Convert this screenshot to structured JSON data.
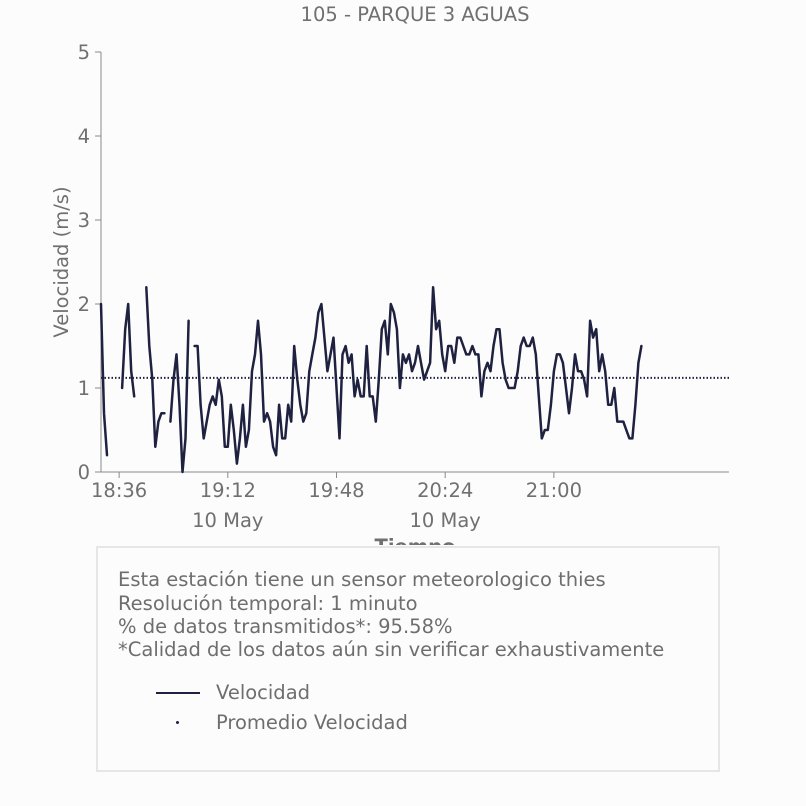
{
  "chart_data": {
    "type": "line",
    "title": "105 - PARQUE 3 AGUAS",
    "xlabel": "Tiempo",
    "ylabel": "Velocidad (m/s)",
    "ylim": [
      0,
      5
    ],
    "yticks": [
      "0",
      "1",
      "2",
      "3",
      "4",
      "5"
    ],
    "xlim": [
      "18:30",
      "21:58"
    ],
    "xticks": [
      {
        "t": "18:36",
        "label": "18:36",
        "sub": ""
      },
      {
        "t": "19:12",
        "label": "19:12",
        "sub": "10 May"
      },
      {
        "t": "19:48",
        "label": "19:48",
        "sub": ""
      },
      {
        "t": "20:24",
        "label": "20:24",
        "sub": "10 May"
      },
      {
        "t": "21:00",
        "label": "21:00",
        "sub": ""
      }
    ],
    "grid": false,
    "series": [
      {
        "name": "Velocidad",
        "color": "#1f2140",
        "segments": [
          [
            [
              "18:30",
              2.0
            ],
            [
              "18:31",
              0.7
            ],
            [
              "18:32",
              0.2
            ]
          ],
          [
            [
              "18:37",
              1.0
            ],
            [
              "18:38",
              1.7
            ],
            [
              "18:39",
              2.0
            ],
            [
              "18:40",
              1.2
            ],
            [
              "18:41",
              0.9
            ]
          ],
          [
            [
              "18:45",
              2.2
            ],
            [
              "18:46",
              1.5
            ],
            [
              "18:47",
              1.1
            ],
            [
              "18:48",
              0.3
            ],
            [
              "18:49",
              0.6
            ],
            [
              "18:50",
              0.7
            ],
            [
              "18:51",
              0.7
            ]
          ],
          [
            [
              "18:53",
              0.6
            ],
            [
              "18:54",
              1.1
            ],
            [
              "18:55",
              1.4
            ],
            [
              "18:56",
              0.8
            ],
            [
              "18:57",
              0.0
            ],
            [
              "18:58",
              0.4
            ],
            [
              "18:59",
              1.8
            ]
          ],
          [
            [
              "19:01",
              1.5
            ],
            [
              "19:02",
              1.5
            ],
            [
              "19:03",
              0.8
            ],
            [
              "19:04",
              0.4
            ],
            [
              "19:05",
              0.6
            ],
            [
              "19:06",
              0.8
            ],
            [
              "19:07",
              0.9
            ],
            [
              "19:08",
              0.8
            ],
            [
              "19:09",
              1.1
            ],
            [
              "19:10",
              0.9
            ],
            [
              "19:11",
              0.3
            ],
            [
              "19:12",
              0.3
            ],
            [
              "19:13",
              0.8
            ],
            [
              "19:14",
              0.5
            ],
            [
              "19:15",
              0.1
            ],
            [
              "19:16",
              0.4
            ],
            [
              "19:17",
              0.8
            ],
            [
              "19:18",
              0.3
            ],
            [
              "19:19",
              0.5
            ],
            [
              "19:20",
              1.2
            ],
            [
              "19:21",
              1.4
            ],
            [
              "19:22",
              1.8
            ],
            [
              "19:23",
              1.4
            ],
            [
              "19:24",
              0.6
            ],
            [
              "19:25",
              0.7
            ],
            [
              "19:26",
              0.6
            ],
            [
              "19:27",
              0.3
            ],
            [
              "19:28",
              0.2
            ],
            [
              "19:29",
              0.8
            ],
            [
              "19:30",
              0.4
            ],
            [
              "19:31",
              0.4
            ],
            [
              "19:32",
              0.8
            ],
            [
              "19:33",
              0.6
            ],
            [
              "19:34",
              1.5
            ],
            [
              "19:35",
              1.1
            ],
            [
              "19:36",
              0.8
            ],
            [
              "19:37",
              0.6
            ],
            [
              "19:38",
              0.7
            ],
            [
              "19:39",
              1.2
            ],
            [
              "19:40",
              1.4
            ],
            [
              "19:41",
              1.6
            ],
            [
              "19:42",
              1.9
            ],
            [
              "19:43",
              2.0
            ],
            [
              "19:44",
              1.6
            ],
            [
              "19:45",
              1.2
            ],
            [
              "19:46",
              1.4
            ],
            [
              "19:47",
              1.6
            ],
            [
              "19:48",
              1.0
            ],
            [
              "19:49",
              0.4
            ],
            [
              "19:50",
              1.4
            ],
            [
              "19:51",
              1.5
            ],
            [
              "19:52",
              1.3
            ],
            [
              "19:53",
              1.4
            ],
            [
              "19:54",
              0.9
            ],
            [
              "19:55",
              1.1
            ],
            [
              "19:56",
              0.9
            ],
            [
              "19:57",
              0.9
            ],
            [
              "19:58",
              1.5
            ],
            [
              "19:59",
              0.9
            ],
            [
              "20:00",
              0.9
            ],
            [
              "20:01",
              0.6
            ],
            [
              "20:02",
              1.1
            ],
            [
              "20:03",
              1.7
            ],
            [
              "20:04",
              1.8
            ],
            [
              "20:05",
              1.4
            ],
            [
              "20:06",
              2.0
            ],
            [
              "20:07",
              1.9
            ],
            [
              "20:08",
              1.7
            ],
            [
              "20:09",
              1.0
            ],
            [
              "20:10",
              1.4
            ],
            [
              "20:11",
              1.3
            ],
            [
              "20:12",
              1.4
            ],
            [
              "20:13",
              1.2
            ],
            [
              "20:14",
              1.3
            ],
            [
              "20:15",
              1.5
            ],
            [
              "20:16",
              1.3
            ],
            [
              "20:17",
              1.1
            ],
            [
              "20:18",
              1.2
            ],
            [
              "20:19",
              1.3
            ],
            [
              "20:20",
              2.2
            ],
            [
              "20:21",
              1.7
            ],
            [
              "20:22",
              1.8
            ],
            [
              "20:23",
              1.4
            ],
            [
              "20:24",
              1.2
            ],
            [
              "20:25",
              1.5
            ],
            [
              "20:26",
              1.5
            ],
            [
              "20:27",
              1.3
            ],
            [
              "20:28",
              1.6
            ],
            [
              "20:29",
              1.6
            ],
            [
              "20:30",
              1.5
            ],
            [
              "20:31",
              1.4
            ],
            [
              "20:32",
              1.4
            ],
            [
              "20:33",
              1.5
            ],
            [
              "20:34",
              1.4
            ],
            [
              "20:35",
              1.4
            ],
            [
              "20:36",
              0.9
            ],
            [
              "20:37",
              1.2
            ],
            [
              "20:38",
              1.3
            ],
            [
              "20:39",
              1.2
            ],
            [
              "20:40",
              1.5
            ],
            [
              "20:41",
              1.7
            ],
            [
              "20:42",
              1.7
            ],
            [
              "20:43",
              1.3
            ],
            [
              "20:44",
              1.1
            ],
            [
              "20:45",
              1.0
            ],
            [
              "20:46",
              1.0
            ],
            [
              "20:47",
              1.0
            ],
            [
              "20:48",
              1.2
            ],
            [
              "20:49",
              1.5
            ],
            [
              "20:50",
              1.6
            ],
            [
              "20:51",
              1.5
            ],
            [
              "20:52",
              1.5
            ],
            [
              "20:53",
              1.6
            ],
            [
              "20:54",
              1.4
            ],
            [
              "20:55",
              0.9
            ],
            [
              "20:56",
              0.4
            ],
            [
              "20:57",
              0.5
            ],
            [
              "20:58",
              0.5
            ],
            [
              "20:59",
              0.8
            ],
            [
              "21:00",
              1.2
            ],
            [
              "21:01",
              1.4
            ],
            [
              "21:02",
              1.4
            ],
            [
              "21:03",
              1.3
            ],
            [
              "21:04",
              1.0
            ],
            [
              "21:05",
              0.7
            ],
            [
              "21:06",
              1.0
            ],
            [
              "21:07",
              1.4
            ],
            [
              "21:08",
              1.2
            ],
            [
              "21:09",
              1.2
            ],
            [
              "21:10",
              1.1
            ],
            [
              "21:11",
              0.9
            ],
            [
              "21:12",
              1.8
            ],
            [
              "21:13",
              1.6
            ],
            [
              "21:14",
              1.7
            ],
            [
              "21:15",
              1.2
            ],
            [
              "21:16",
              1.4
            ],
            [
              "21:17",
              1.2
            ],
            [
              "21:18",
              0.8
            ],
            [
              "21:19",
              0.8
            ],
            [
              "21:20",
              1.0
            ],
            [
              "21:21",
              0.6
            ],
            [
              "21:22",
              0.6
            ],
            [
              "21:23",
              0.6
            ],
            [
              "21:24",
              0.5
            ],
            [
              "21:25",
              0.4
            ],
            [
              "21:26",
              0.4
            ],
            [
              "21:27",
              0.8
            ],
            [
              "21:28",
              1.3
            ],
            [
              "21:29",
              1.5
            ]
          ]
        ]
      },
      {
        "name": "Promedio Velocidad",
        "color": "#1f2140",
        "style": "dotted",
        "y": 1.12
      }
    ],
    "legend": "bottom-left, inside info box"
  },
  "info": {
    "lines": [
      "Esta estación tiene un sensor meteorologico thies",
      "Resolución temporal: 1 minuto",
      "% de datos transmitidos*: 95.58%",
      "*Calidad de los datos aún sin verificar exhaustivamente"
    ]
  },
  "legend": {
    "items": [
      {
        "label": "Velocidad",
        "kind": "line"
      },
      {
        "label": "Promedio Velocidad",
        "kind": "dot"
      }
    ]
  },
  "colors": {
    "series": "#1f2140",
    "text": "#707070",
    "axis": "#8a8a8a"
  }
}
